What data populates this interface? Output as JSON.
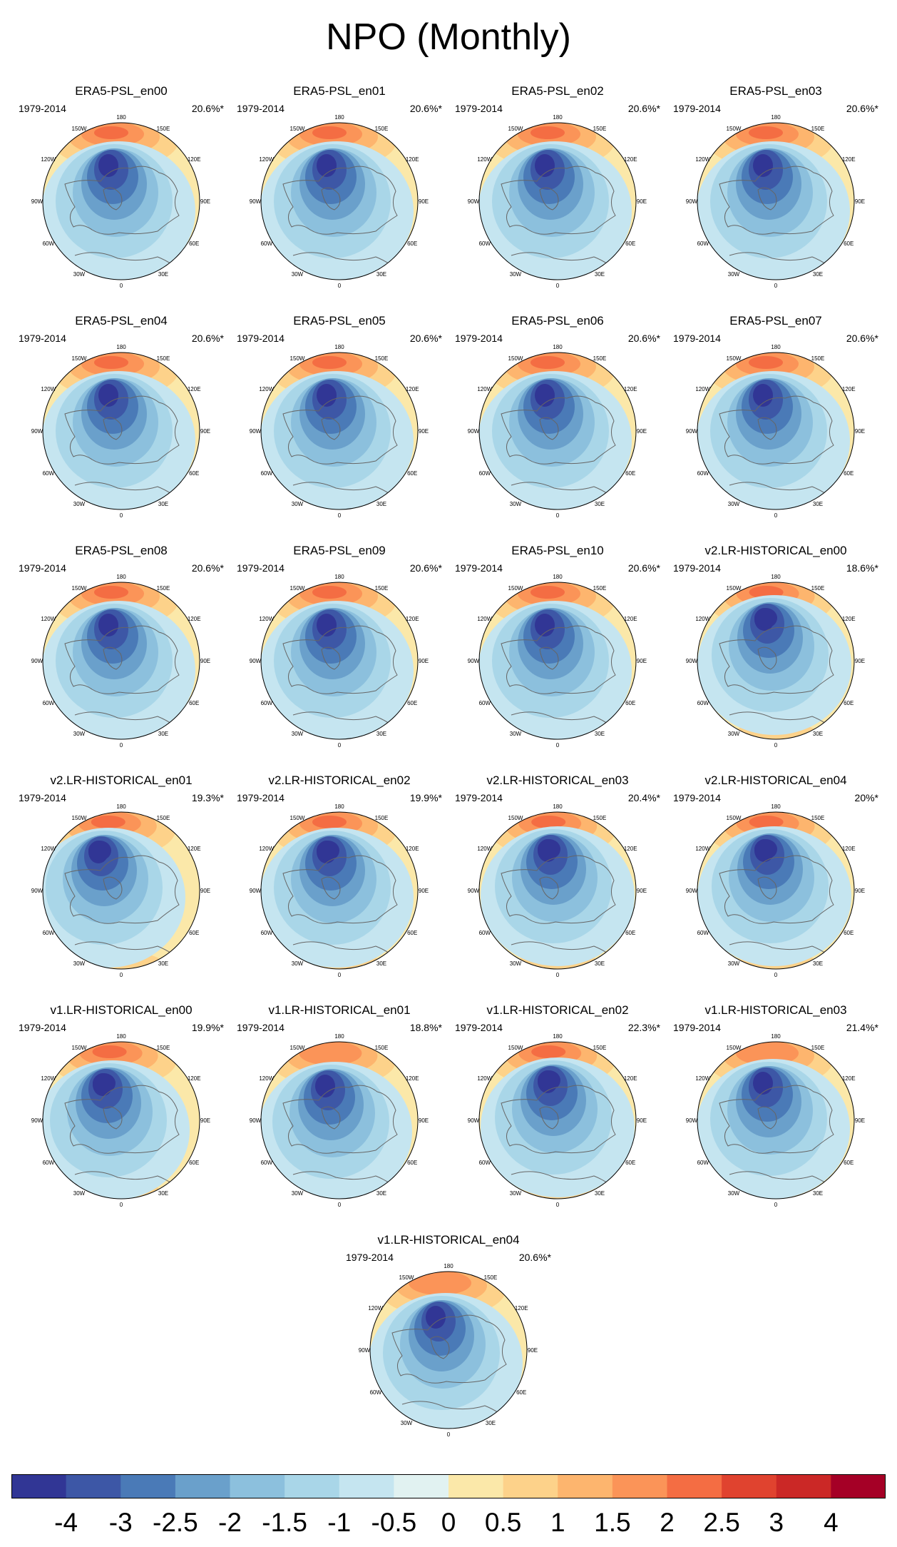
{
  "title": "NPO (Monthly)",
  "chart_data": {
    "type": "heatmap",
    "projection": "north polar stereographic",
    "period_label": "1979-2014",
    "longitude_labels": [
      "180",
      "150W",
      "150E",
      "120W",
      "120E",
      "90W",
      "90E",
      "60W",
      "60E",
      "30W",
      "30E",
      "0"
    ],
    "colorbar": {
      "levels": [
        "-4",
        "-3",
        "-2.5",
        "-2",
        "-1.5",
        "-1",
        "-0.5",
        "0",
        "0.5",
        "1",
        "1.5",
        "2",
        "2.5",
        "3",
        "4"
      ],
      "colors": [
        "#313695",
        "#3d57a6",
        "#4a7ab7",
        "#6aa0cb",
        "#8cc0dd",
        "#a9d6e8",
        "#c5e5f0",
        "#e1f2f1",
        "#fbe8a9",
        "#fdd28a",
        "#fdb56e",
        "#fb9458",
        "#f46d43",
        "#e0432f",
        "#cb2826",
        "#a50026"
      ]
    },
    "panels": [
      {
        "title": "ERA5-PSL_en00",
        "percent": "20.6%*"
      },
      {
        "title": "ERA5-PSL_en01",
        "percent": "20.6%*"
      },
      {
        "title": "ERA5-PSL_en02",
        "percent": "20.6%*"
      },
      {
        "title": "ERA5-PSL_en03",
        "percent": "20.6%*"
      },
      {
        "title": "ERA5-PSL_en04",
        "percent": "20.6%*"
      },
      {
        "title": "ERA5-PSL_en05",
        "percent": "20.6%*"
      },
      {
        "title": "ERA5-PSL_en06",
        "percent": "20.6%*"
      },
      {
        "title": "ERA5-PSL_en07",
        "percent": "20.6%*"
      },
      {
        "title": "ERA5-PSL_en08",
        "percent": "20.6%*"
      },
      {
        "title": "ERA5-PSL_en09",
        "percent": "20.6%*"
      },
      {
        "title": "ERA5-PSL_en10",
        "percent": "20.6%*"
      },
      {
        "title": "v2.LR-HISTORICAL_en00",
        "percent": "18.6%*"
      },
      {
        "title": "v2.LR-HISTORICAL_en01",
        "percent": "19.3%*"
      },
      {
        "title": "v2.LR-HISTORICAL_en02",
        "percent": "19.9%*"
      },
      {
        "title": "v2.LR-HISTORICAL_en03",
        "percent": "20.4%*"
      },
      {
        "title": "v2.LR-HISTORICAL_en04",
        "percent": "20%*"
      },
      {
        "title": "v1.LR-HISTORICAL_en00",
        "percent": "19.9%*"
      },
      {
        "title": "v1.LR-HISTORICAL_en01",
        "percent": "18.8%*"
      },
      {
        "title": "v1.LR-HISTORICAL_en02",
        "percent": "22.3%*"
      },
      {
        "title": "v1.LR-HISTORICAL_en03",
        "percent": "21.4%*"
      },
      {
        "title": "v1.LR-HISTORICAL_en04",
        "percent": "20.6%*"
      }
    ]
  }
}
